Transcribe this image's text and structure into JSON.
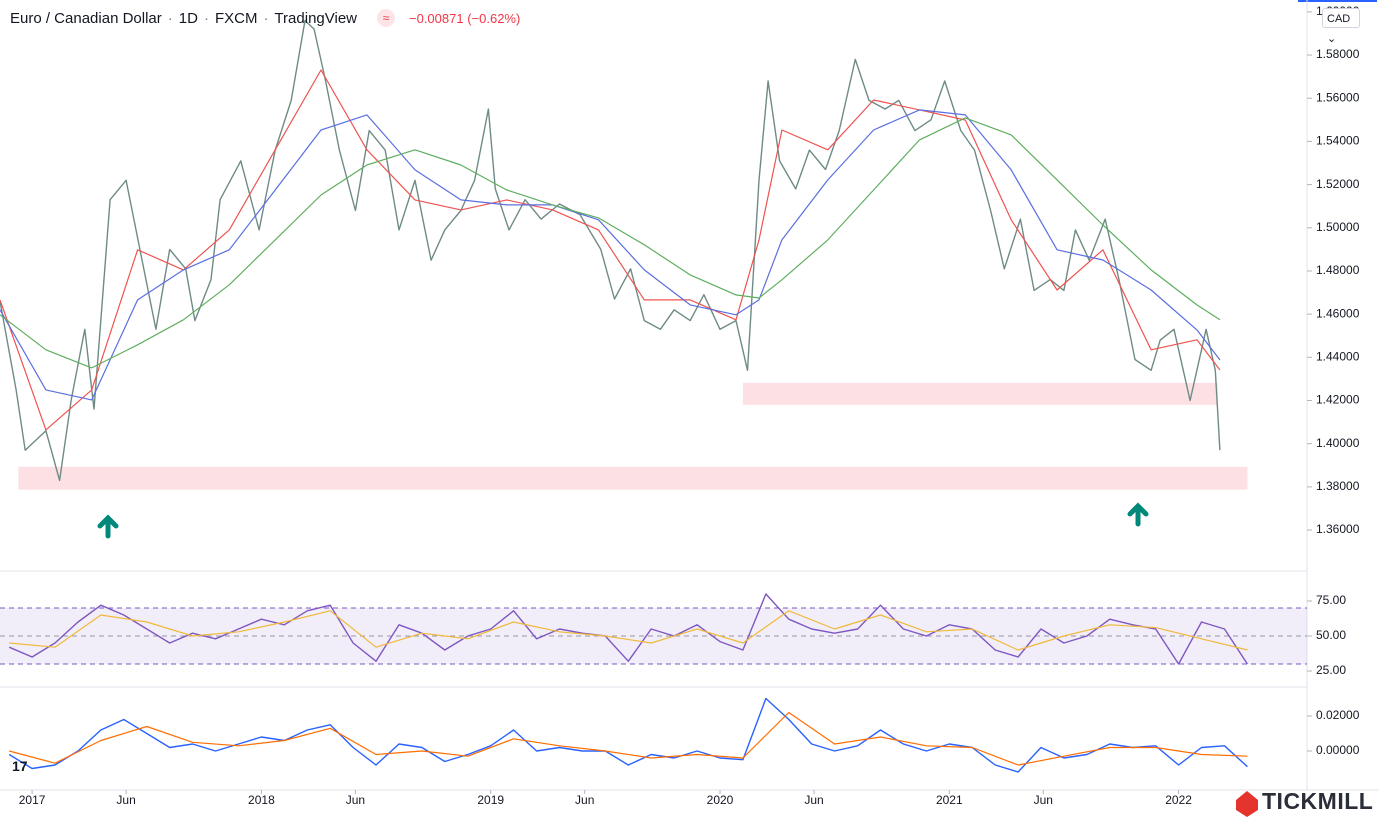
{
  "header": {
    "symbol": "Euro / Canadian Dollar",
    "interval": "1D",
    "exchange": "FXCM",
    "source": "TradingView",
    "change": "−0.00871 (−0.62%)",
    "currency": "CAD",
    "brand": "TICKMILL"
  },
  "chart_data": [
    {
      "type": "line",
      "xlim": [
        2016.86,
        2022.56
      ],
      "ylim": [
        1.3415,
        1.6055
      ],
      "xticks": [
        {
          "value": 2017,
          "label": "2017"
        },
        {
          "value": 2017.41,
          "label": "Jun"
        },
        {
          "value": 2018,
          "label": "2018"
        },
        {
          "value": 2018.41,
          "label": "Jun"
        },
        {
          "value": 2019,
          "label": "2019"
        },
        {
          "value": 2019.41,
          "label": "Jun"
        },
        {
          "value": 2020,
          "label": "2020"
        },
        {
          "value": 2020.41,
          "label": "Jun"
        },
        {
          "value": 2021,
          "label": "2021"
        },
        {
          "value": 2021.41,
          "label": "Jun"
        },
        {
          "value": 2022,
          "label": "2022"
        }
      ],
      "yticks": [
        {
          "value": 1.36,
          "label": "1.36000"
        },
        {
          "value": 1.38,
          "label": "1.38000"
        },
        {
          "value": 1.4,
          "label": "1.40000"
        },
        {
          "value": 1.42,
          "label": "1.42000"
        },
        {
          "value": 1.44,
          "label": "1.44000"
        },
        {
          "value": 1.46,
          "label": "1.46000"
        },
        {
          "value": 1.48,
          "label": "1.48000"
        },
        {
          "value": 1.5,
          "label": "1.50000"
        },
        {
          "value": 1.52,
          "label": "1.52000"
        },
        {
          "value": 1.54,
          "label": "1.54000"
        },
        {
          "value": 1.56,
          "label": "1.56000"
        },
        {
          "value": 1.58,
          "label": "1.58000"
        },
        {
          "value": 1.6,
          "label": "1.60000"
        }
      ],
      "zones": [
        {
          "color": "#fde0e3",
          "xlim": [
            2016.94,
            2022.3
          ],
          "ylim": [
            1.3787,
            1.3893
          ]
        },
        {
          "color": "#fde0e3",
          "xlim": [
            2020.1,
            2022.17
          ],
          "ylim": [
            1.418,
            1.4282
          ]
        }
      ],
      "series": [
        {
          "color": "#6e8b86",
          "x": [
            2016.86,
            2016.93,
            2016.97,
            2017.06,
            2017.12,
            2017.17,
            2017.23,
            2017.27,
            2017.34,
            2017.41,
            2017.47,
            2017.54,
            2017.6,
            2017.67,
            2017.71,
            2017.78,
            2017.82,
            2017.91,
            2017.99,
            2018.06,
            2018.13,
            2018.19,
            2018.23,
            2018.28,
            2018.34,
            2018.41,
            2018.47,
            2018.54,
            2018.6,
            2018.67,
            2018.74,
            2018.8,
            2018.87,
            2018.93,
            2018.99,
            2019.02,
            2019.08,
            2019.15,
            2019.22,
            2019.3,
            2019.39,
            2019.48,
            2019.54,
            2019.61,
            2019.67,
            2019.74,
            2019.8,
            2019.87,
            2019.93,
            2020.0,
            2020.07,
            2020.12,
            2020.17,
            2020.21,
            2020.26,
            2020.33,
            2020.39,
            2020.46,
            2020.52,
            2020.59,
            2020.65,
            2020.72,
            2020.78,
            2020.85,
            2020.92,
            2020.98,
            2021.05,
            2021.11,
            2021.18,
            2021.24,
            2021.31,
            2021.37,
            2021.44,
            2021.5,
            2021.55,
            2021.61,
            2021.68,
            2021.74,
            2021.81,
            2021.88,
            2021.92,
            2021.98,
            2022.05,
            2022.12,
            2022.16,
            2022.18
          ],
          "values": [
            1.466,
            1.425,
            1.397,
            1.406,
            1.383,
            1.42,
            1.453,
            1.416,
            1.513,
            1.522,
            1.49,
            1.453,
            1.49,
            1.481,
            1.457,
            1.476,
            1.513,
            1.531,
            1.499,
            1.536,
            1.559,
            1.596,
            1.592,
            1.568,
            1.536,
            1.508,
            1.545,
            1.536,
            1.499,
            1.522,
            1.485,
            1.499,
            1.508,
            1.522,
            1.555,
            1.518,
            1.499,
            1.513,
            1.504,
            1.511,
            1.506,
            1.49,
            1.467,
            1.481,
            1.457,
            1.453,
            1.462,
            1.457,
            1.469,
            1.453,
            1.457,
            1.434,
            1.522,
            1.568,
            1.531,
            1.518,
            1.536,
            1.527,
            1.545,
            1.578,
            1.559,
            1.555,
            1.559,
            1.545,
            1.55,
            1.568,
            1.545,
            1.536,
            1.508,
            1.481,
            1.504,
            1.471,
            1.476,
            1.471,
            1.499,
            1.485,
            1.504,
            1.476,
            1.439,
            1.434,
            1.448,
            1.453,
            1.42,
            1.453,
            1.434,
            1.397
          ]
        },
        {
          "color": "#ef5350",
          "x": [
            2016.86,
            2017.06,
            2017.26,
            2017.46,
            2017.66,
            2017.86,
            2018.06,
            2018.26,
            2018.46,
            2018.67,
            2018.87,
            2019.07,
            2019.27,
            2019.47,
            2019.67,
            2019.87,
            2020.07,
            2020.17,
            2020.27,
            2020.47,
            2020.67,
            2020.87,
            2021.07,
            2021.27,
            2021.47,
            2021.67,
            2021.88,
            2022.08,
            2022.18
          ],
          "values": [
            1.4666,
            1.4064,
            1.4249,
            1.4898,
            1.4805,
            1.499,
            1.5361,
            1.5731,
            1.5361,
            1.5129,
            1.5083,
            1.5129,
            1.5083,
            1.499,
            1.4666,
            1.4666,
            1.4574,
            1.4944,
            1.5453,
            1.5361,
            1.5592,
            1.5546,
            1.5499,
            1.5037,
            1.4712,
            1.4898,
            1.4435,
            1.4481,
            1.4342
          ]
        },
        {
          "color": "#5b6ee1",
          "x": [
            2016.86,
            2017.06,
            2017.26,
            2017.46,
            2017.66,
            2017.86,
            2018.06,
            2018.26,
            2018.46,
            2018.67,
            2018.87,
            2019.07,
            2019.27,
            2019.47,
            2019.67,
            2019.87,
            2020.07,
            2020.17,
            2020.27,
            2020.47,
            2020.67,
            2020.87,
            2021.07,
            2021.27,
            2021.47,
            2021.67,
            2021.88,
            2022.08,
            2022.18
          ],
          "values": [
            1.462,
            1.4249,
            1.4203,
            1.4666,
            1.4805,
            1.4898,
            1.5175,
            1.5453,
            1.5523,
            1.5268,
            1.5129,
            1.5106,
            1.5106,
            1.5037,
            1.4805,
            1.4643,
            1.4597,
            1.4666,
            1.4944,
            1.5222,
            1.5453,
            1.5546,
            1.5523,
            1.5268,
            1.4898,
            1.4851,
            1.4712,
            1.4527,
            1.4388
          ]
        },
        {
          "color": "#5fae5f",
          "x": [
            2016.86,
            2017.06,
            2017.26,
            2017.46,
            2017.66,
            2017.86,
            2018.06,
            2018.26,
            2018.46,
            2018.67,
            2018.87,
            2019.07,
            2019.27,
            2019.47,
            2019.67,
            2019.87,
            2020.07,
            2020.17,
            2020.27,
            2020.47,
            2020.67,
            2020.87,
            2021.07,
            2021.27,
            2021.47,
            2021.67,
            2021.88,
            2022.08,
            2022.18
          ],
          "values": [
            1.4597,
            1.4435,
            1.4351,
            1.4458,
            1.4574,
            1.4736,
            1.4944,
            1.5152,
            1.5291,
            1.5361,
            1.5291,
            1.5175,
            1.5106,
            1.5046,
            1.4921,
            1.4782,
            1.4689,
            1.4675,
            1.4759,
            1.4944,
            1.5175,
            1.5407,
            1.5509,
            1.543,
            1.5222,
            1.5013,
            1.4805,
            1.4643,
            1.4574
          ]
        }
      ]
    },
    {
      "type": "line",
      "xlim": [
        2016.86,
        2022.56
      ],
      "ylim": [
        13.6,
        95.7
      ],
      "yticks": [
        {
          "value": 25,
          "label": "25.00"
        },
        {
          "value": 50,
          "label": "50.00"
        },
        {
          "value": 75,
          "label": "75.00"
        }
      ],
      "band": [
        30,
        70
      ],
      "midline": 50,
      "band_color": "#7e57c2",
      "series": [
        {
          "color": "#7e57c2",
          "x": [
            2016.9,
            2017.0,
            2017.1,
            2017.2,
            2017.3,
            2017.4,
            2017.5,
            2017.6,
            2017.7,
            2017.8,
            2017.9,
            2018.0,
            2018.1,
            2018.2,
            2018.3,
            2018.4,
            2018.5,
            2018.6,
            2018.7,
            2018.8,
            2018.9,
            2019.0,
            2019.1,
            2019.2,
            2019.3,
            2019.4,
            2019.5,
            2019.6,
            2019.7,
            2019.8,
            2019.9,
            2020.0,
            2020.1,
            2020.2,
            2020.3,
            2020.4,
            2020.5,
            2020.6,
            2020.7,
            2020.8,
            2020.9,
            2021.0,
            2021.1,
            2021.2,
            2021.3,
            2021.4,
            2021.5,
            2021.6,
            2021.7,
            2021.8,
            2021.9,
            2022.0,
            2022.1,
            2022.2,
            2022.3
          ],
          "values": [
            42,
            35,
            45,
            60,
            72,
            65,
            55,
            45,
            52,
            48,
            55,
            62,
            58,
            68,
            72,
            45,
            32,
            58,
            52,
            40,
            50,
            55,
            68,
            48,
            55,
            52,
            50,
            32,
            55,
            50,
            58,
            46,
            40,
            80,
            62,
            55,
            52,
            55,
            72,
            55,
            50,
            58,
            55,
            40,
            35,
            55,
            45,
            50,
            62,
            58,
            55,
            30,
            60,
            55,
            30
          ]
        },
        {
          "color": "#f0b93a",
          "x": [
            2016.9,
            2017.1,
            2017.3,
            2017.5,
            2017.7,
            2017.9,
            2018.1,
            2018.3,
            2018.5,
            2018.7,
            2018.9,
            2019.1,
            2019.3,
            2019.5,
            2019.7,
            2019.9,
            2020.1,
            2020.3,
            2020.5,
            2020.7,
            2020.9,
            2021.1,
            2021.3,
            2021.5,
            2021.7,
            2021.9,
            2022.1,
            2022.3
          ],
          "values": [
            45,
            42,
            65,
            60,
            50,
            53,
            60,
            68,
            42,
            52,
            48,
            60,
            53,
            50,
            45,
            55,
            45,
            68,
            55,
            65,
            53,
            55,
            40,
            50,
            58,
            56,
            48,
            40
          ]
        }
      ]
    },
    {
      "type": "line",
      "xlim": [
        2016.86,
        2022.56
      ],
      "ylim": [
        -0.0223,
        0.0366
      ],
      "yticks": [
        {
          "value": 0,
          "label": "0.00000"
        },
        {
          "value": 0.02,
          "label": "0.02000"
        }
      ],
      "series": [
        {
          "color": "#2962ff",
          "x": [
            2016.9,
            2017.0,
            2017.1,
            2017.2,
            2017.3,
            2017.4,
            2017.5,
            2017.6,
            2017.7,
            2017.8,
            2017.9,
            2018.0,
            2018.1,
            2018.2,
            2018.3,
            2018.4,
            2018.5,
            2018.6,
            2018.7,
            2018.8,
            2018.9,
            2019.0,
            2019.1,
            2019.2,
            2019.3,
            2019.4,
            2019.5,
            2019.6,
            2019.7,
            2019.8,
            2019.9,
            2020.0,
            2020.1,
            2020.2,
            2020.3,
            2020.4,
            2020.5,
            2020.6,
            2020.7,
            2020.8,
            2020.9,
            2021.0,
            2021.1,
            2021.2,
            2021.3,
            2021.4,
            2021.5,
            2021.6,
            2021.7,
            2021.8,
            2021.9,
            2022.0,
            2022.1,
            2022.2,
            2022.3
          ],
          "values": [
            -0.002,
            -0.01,
            -0.008,
            0.0,
            0.012,
            0.018,
            0.01,
            0.002,
            0.004,
            0.0,
            0.004,
            0.008,
            0.006,
            0.012,
            0.015,
            0.002,
            -0.008,
            0.004,
            0.002,
            -0.006,
            -0.002,
            0.003,
            0.012,
            0.0,
            0.002,
            0.0,
            0.0,
            -0.008,
            -0.002,
            -0.004,
            0.0,
            -0.004,
            -0.005,
            0.03,
            0.018,
            0.004,
            0.0,
            0.003,
            0.012,
            0.004,
            0.0,
            0.004,
            0.002,
            -0.008,
            -0.012,
            0.002,
            -0.004,
            -0.002,
            0.004,
            0.002,
            0.003,
            -0.008,
            0.002,
            0.003,
            -0.009
          ]
        },
        {
          "color": "#ff6d00",
          "x": [
            2016.9,
            2017.1,
            2017.3,
            2017.5,
            2017.7,
            2017.9,
            2018.1,
            2018.3,
            2018.5,
            2018.7,
            2018.9,
            2019.1,
            2019.3,
            2019.5,
            2019.7,
            2019.9,
            2020.1,
            2020.3,
            2020.5,
            2020.7,
            2020.9,
            2021.1,
            2021.3,
            2021.5,
            2021.7,
            2021.9,
            2022.1,
            2022.3
          ],
          "values": [
            0.0,
            -0.007,
            0.006,
            0.014,
            0.005,
            0.003,
            0.006,
            0.013,
            -0.002,
            0.0,
            -0.003,
            0.007,
            0.003,
            0.0,
            -0.004,
            -0.002,
            -0.004,
            0.022,
            0.004,
            0.008,
            0.003,
            0.002,
            -0.008,
            -0.003,
            0.002,
            0.002,
            -0.002,
            -0.003
          ]
        }
      ]
    }
  ]
}
